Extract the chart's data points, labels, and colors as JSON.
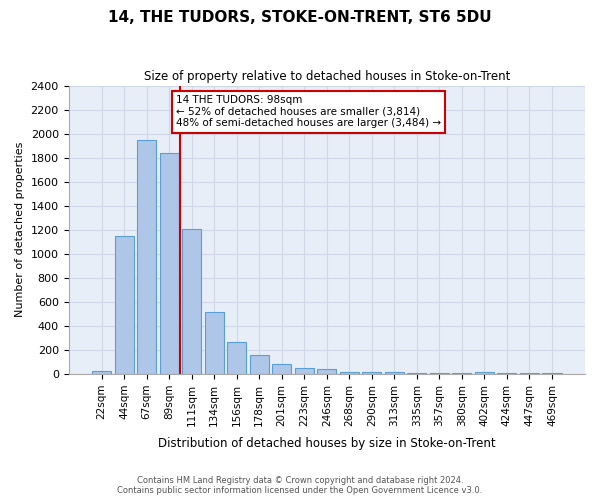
{
  "title": "14, THE TUDORS, STOKE-ON-TRENT, ST6 5DU",
  "subtitle": "Size of property relative to detached houses in Stoke-on-Trent",
  "xlabel": "Distribution of detached houses by size in Stoke-on-Trent",
  "ylabel": "Number of detached properties",
  "categories": [
    "22sqm",
    "44sqm",
    "67sqm",
    "89sqm",
    "111sqm",
    "134sqm",
    "156sqm",
    "178sqm",
    "201sqm",
    "223sqm",
    "246sqm",
    "268sqm",
    "290sqm",
    "313sqm",
    "335sqm",
    "357sqm",
    "380sqm",
    "402sqm",
    "424sqm",
    "447sqm",
    "469sqm"
  ],
  "values": [
    28,
    1150,
    1950,
    1840,
    1210,
    515,
    265,
    155,
    80,
    48,
    42,
    20,
    20,
    15,
    12,
    10,
    8,
    20,
    5,
    5,
    5
  ],
  "bar_color": "#aec6e8",
  "bar_edgecolor": "#5a9fd4",
  "vline_x": 3.5,
  "vline_color": "#cc0000",
  "annotation_text": "14 THE TUDORS: 98sqm\n← 52% of detached houses are smaller (3,814)\n48% of semi-detached houses are larger (3,484) →",
  "annotation_box_color": "#ffffff",
  "annotation_box_edgecolor": "#cc0000",
  "ylim": [
    0,
    2400
  ],
  "yticks": [
    0,
    200,
    400,
    600,
    800,
    1000,
    1200,
    1400,
    1600,
    1800,
    2000,
    2200,
    2400
  ],
  "grid_color": "#d0d8e8",
  "background_color": "#e8eef8",
  "footer_line1": "Contains HM Land Registry data © Crown copyright and database right 2024.",
  "footer_line2": "Contains public sector information licensed under the Open Government Licence v3.0."
}
